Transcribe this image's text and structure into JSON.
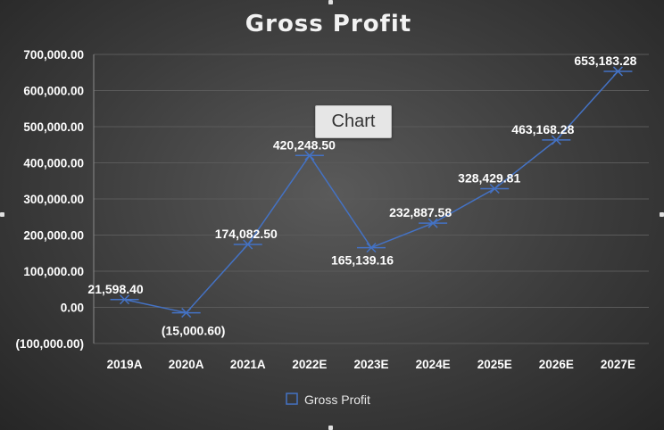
{
  "tooltip": {
    "label": "Chart"
  },
  "chart_data": {
    "type": "line",
    "title": "Gross Profit",
    "xlabel": "",
    "ylabel": "",
    "categories": [
      "2019A",
      "2020A",
      "2021A",
      "2022E",
      "2023E",
      "2024E",
      "2025E",
      "2026E",
      "2027E"
    ],
    "series": [
      {
        "name": "Gross Profit",
        "values": [
          21598.4,
          -15000.6,
          174082.5,
          420248.5,
          165139.16,
          232887.58,
          328429.81,
          463168.28,
          653183.28
        ],
        "value_labels": [
          "21,598.40",
          "(15,000.60)",
          "174,082.50",
          "420,248.50",
          "165,139.16",
          "232,887.58",
          "328,429.81",
          "463,168.28",
          "653,183.28"
        ],
        "color": "#4472c4",
        "marker": "x"
      }
    ],
    "ylim": [
      -100000,
      700000
    ],
    "yticks": [
      700000,
      600000,
      500000,
      400000,
      300000,
      200000,
      100000,
      0,
      -100000
    ],
    "ytick_labels": [
      "700,000.00",
      "600,000.00",
      "500,000.00",
      "400,000.00",
      "300,000.00",
      "200,000.00",
      "100,000.00",
      "0.00",
      "(100,000.00)"
    ],
    "grid": true,
    "legend": "bottom",
    "colors": {
      "background": "#3c3c3c",
      "grid": "#5a5a5a",
      "line": "#4472c4",
      "text": "#ffffff"
    }
  }
}
